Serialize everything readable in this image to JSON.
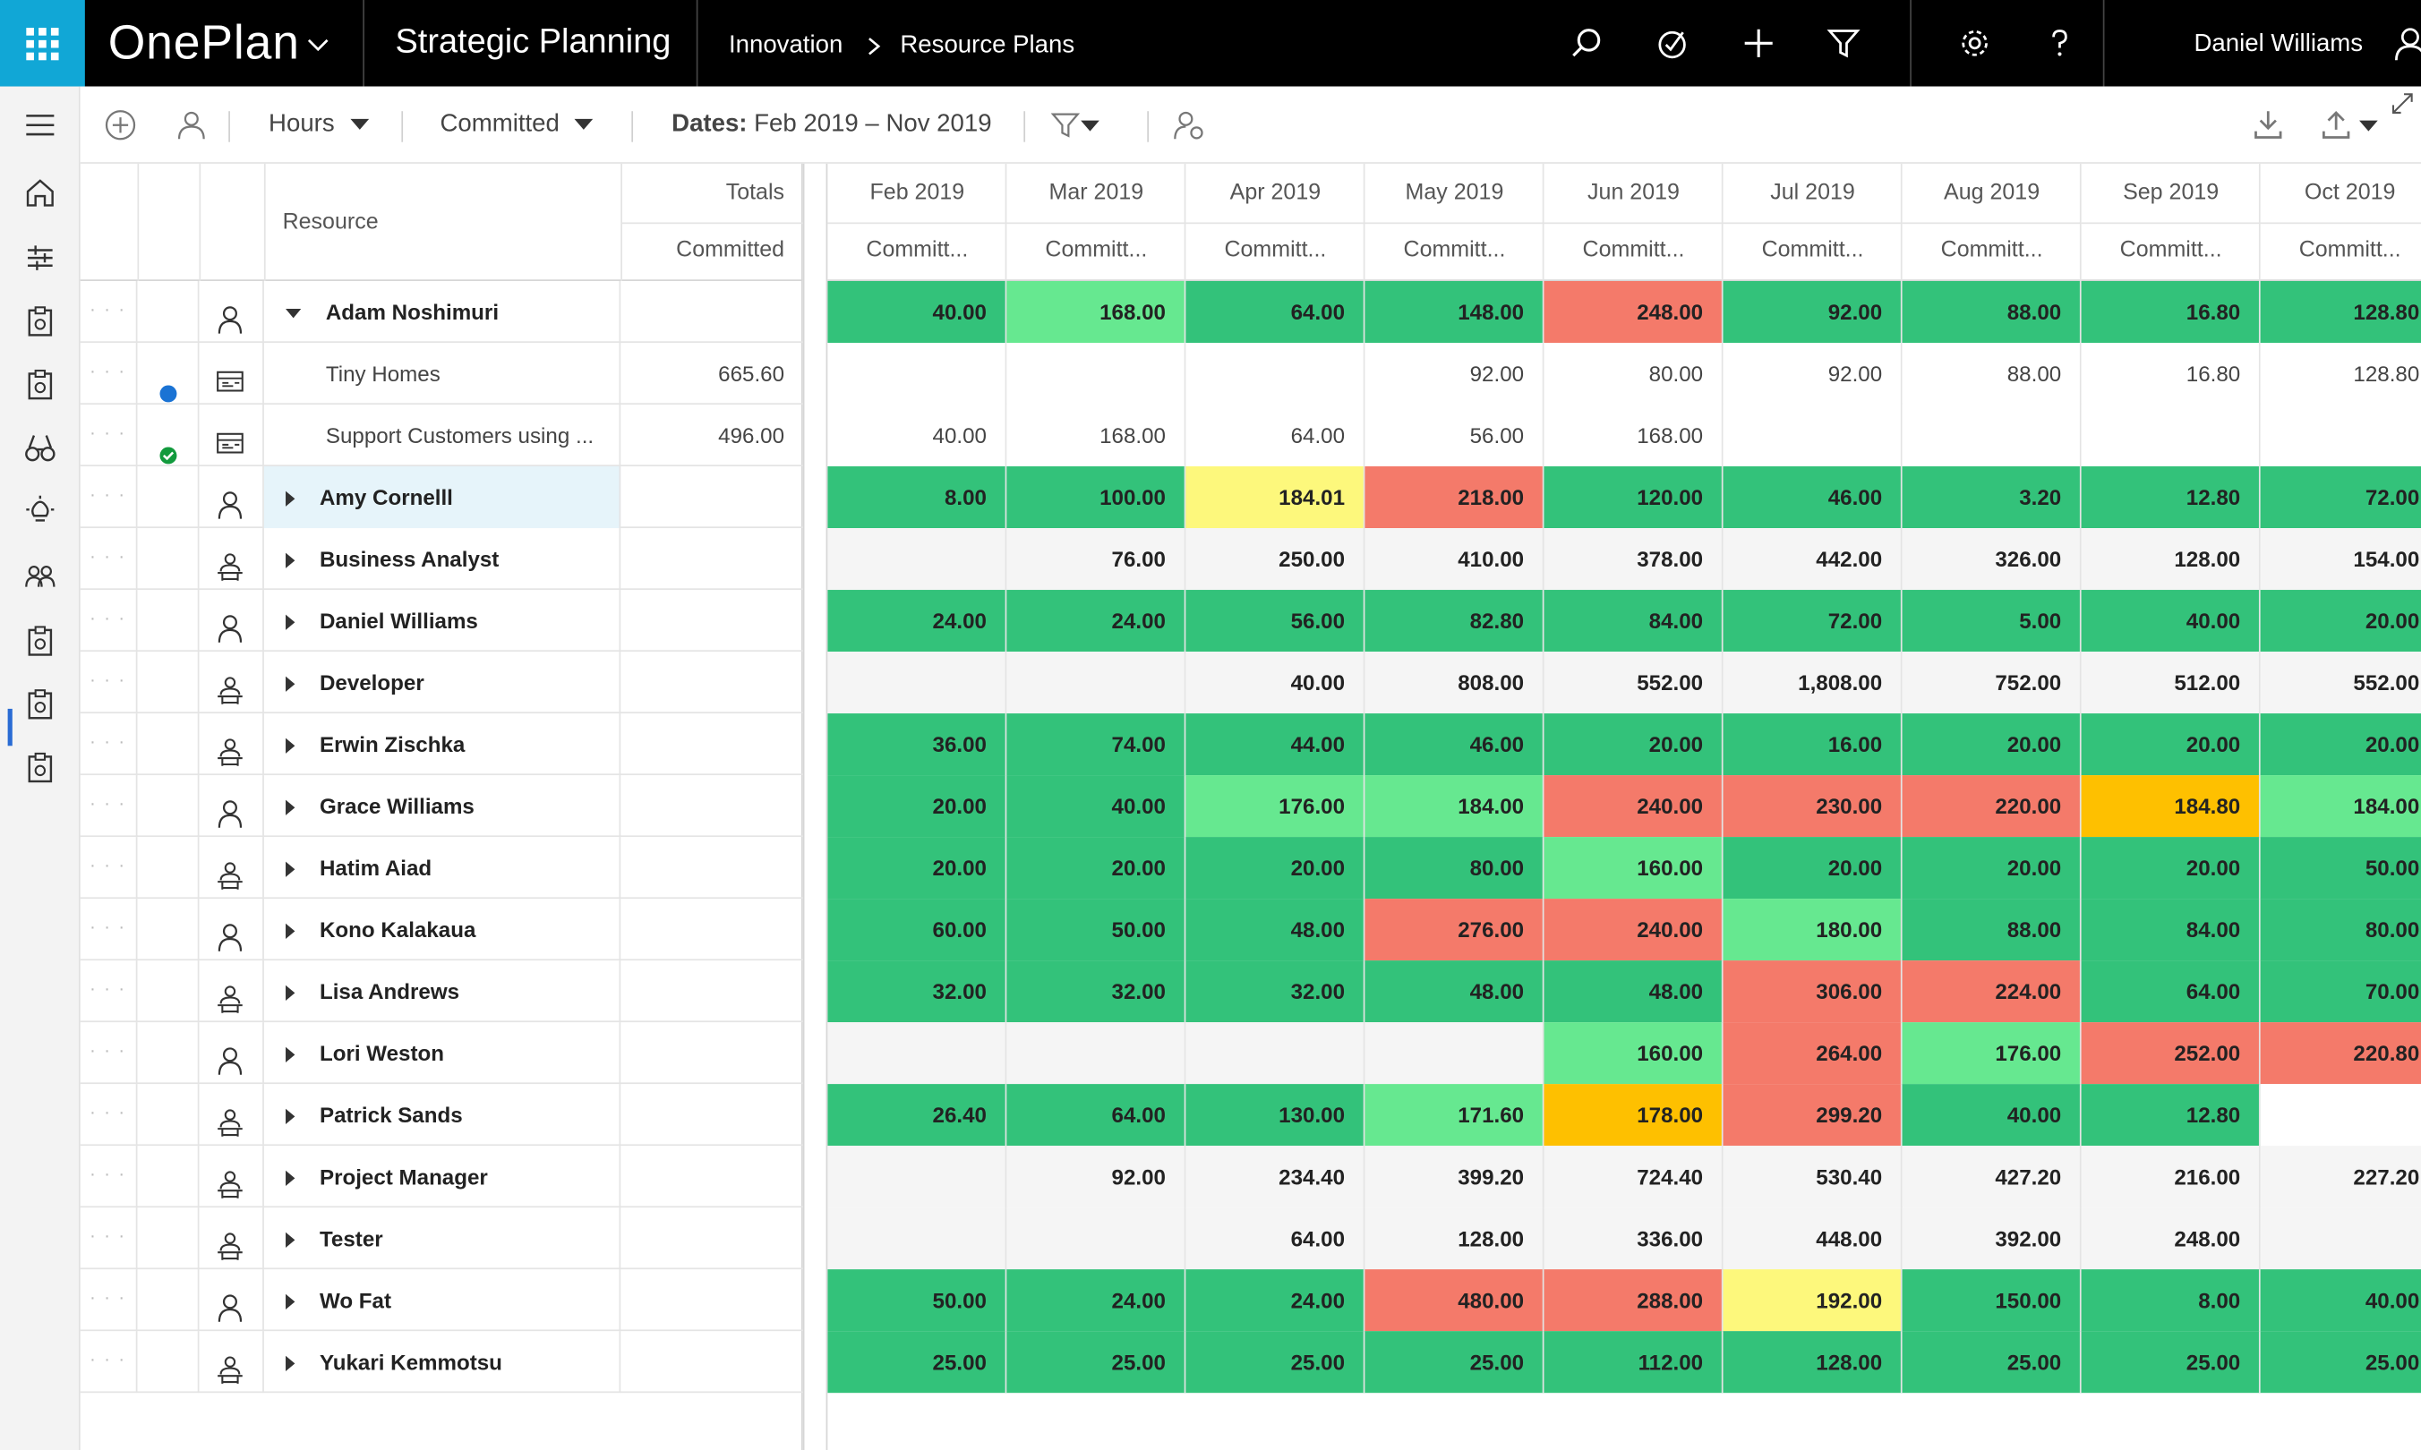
{
  "topbar": {
    "brand": "OnePlan",
    "app_name": "Strategic Planning",
    "breadcrumb": [
      "Innovation",
      "Resource Plans"
    ],
    "user": "Daniel Williams",
    "colors": {
      "bar": "#000000",
      "waffle": "#11a7d6"
    }
  },
  "toolbar": {
    "unit": "Hours",
    "mode": "Committed",
    "dates_label": "Dates:",
    "dates_value": "Feb 2019 – Nov 2019"
  },
  "grid": {
    "resource_header": "Resource",
    "totals_header": "Totals",
    "totals_sub": "Committed",
    "months": [
      "Feb 2019",
      "Mar 2019",
      "Apr 2019",
      "May 2019",
      "Jun 2019",
      "Jul 2019",
      "Aug 2019",
      "Sep 2019",
      "Oct 2019"
    ],
    "month_sub": "Committ...",
    "colors": {
      "g": "#33c27a",
      "l": "#66e890",
      "r": "#f47a6a",
      "y": "#fdf87c",
      "o": "#fec000",
      "w": "#ffffff",
      "n": "#f5f5f5"
    },
    "rows": [
      {
        "name": "Adam Noshimuri",
        "bold": true,
        "expanded": true,
        "icon": "person",
        "total": "",
        "cells": [
          [
            "40.00",
            "g"
          ],
          [
            "168.00",
            "l"
          ],
          [
            "64.00",
            "g"
          ],
          [
            "148.00",
            "g"
          ],
          [
            "248.00",
            "r"
          ],
          [
            "92.00",
            "g"
          ],
          [
            "88.00",
            "g"
          ],
          [
            "16.80",
            "g"
          ],
          [
            "128.80",
            "g"
          ]
        ]
      },
      {
        "name": "Tiny Homes",
        "bold": false,
        "child": true,
        "icon": "project",
        "status": "dot",
        "total": "665.60",
        "cells": [
          [
            "",
            "w"
          ],
          [
            "",
            "w"
          ],
          [
            "",
            "w"
          ],
          [
            "92.00",
            "w"
          ],
          [
            "80.00",
            "w"
          ],
          [
            "92.00",
            "w"
          ],
          [
            "88.00",
            "w"
          ],
          [
            "16.80",
            "w"
          ],
          [
            "128.80",
            "w"
          ]
        ]
      },
      {
        "name": "Support Customers using ...",
        "bold": false,
        "child": true,
        "icon": "project",
        "status": "check",
        "total": "496.00",
        "cells": [
          [
            "40.00",
            "w"
          ],
          [
            "168.00",
            "w"
          ],
          [
            "64.00",
            "w"
          ],
          [
            "56.00",
            "w"
          ],
          [
            "168.00",
            "w"
          ],
          [
            "",
            "w"
          ],
          [
            "",
            "w"
          ],
          [
            "",
            "w"
          ],
          [
            "",
            "w"
          ]
        ]
      },
      {
        "name": "Amy Cornelll",
        "bold": true,
        "icon": "person",
        "selected": true,
        "total": "",
        "cells": [
          [
            "8.00",
            "g"
          ],
          [
            "100.00",
            "g"
          ],
          [
            "184.01",
            "y"
          ],
          [
            "218.00",
            "r"
          ],
          [
            "120.00",
            "g"
          ],
          [
            "46.00",
            "g"
          ],
          [
            "3.20",
            "g"
          ],
          [
            "12.80",
            "g"
          ],
          [
            "72.00",
            "g"
          ]
        ]
      },
      {
        "name": "Business Analyst",
        "bold": true,
        "icon": "role",
        "total": "",
        "cells": [
          [
            "",
            "n"
          ],
          [
            "76.00",
            "n"
          ],
          [
            "250.00",
            "n"
          ],
          [
            "410.00",
            "n"
          ],
          [
            "378.00",
            "n"
          ],
          [
            "442.00",
            "n"
          ],
          [
            "326.00",
            "n"
          ],
          [
            "128.00",
            "n"
          ],
          [
            "154.00",
            "n"
          ]
        ]
      },
      {
        "name": "Daniel Williams",
        "bold": true,
        "icon": "person",
        "total": "",
        "cells": [
          [
            "24.00",
            "g"
          ],
          [
            "24.00",
            "g"
          ],
          [
            "56.00",
            "g"
          ],
          [
            "82.80",
            "g"
          ],
          [
            "84.00",
            "g"
          ],
          [
            "72.00",
            "g"
          ],
          [
            "5.00",
            "g"
          ],
          [
            "40.00",
            "g"
          ],
          [
            "20.00",
            "g"
          ]
        ]
      },
      {
        "name": "Developer",
        "bold": true,
        "icon": "role",
        "total": "",
        "cells": [
          [
            "",
            "n"
          ],
          [
            "",
            "n"
          ],
          [
            "40.00",
            "n"
          ],
          [
            "808.00",
            "n"
          ],
          [
            "552.00",
            "n"
          ],
          [
            "1,808.00",
            "n"
          ],
          [
            "752.00",
            "n"
          ],
          [
            "512.00",
            "n"
          ],
          [
            "552.00",
            "n"
          ]
        ]
      },
      {
        "name": "Erwin Zischka",
        "bold": true,
        "icon": "role",
        "total": "",
        "cells": [
          [
            "36.00",
            "g"
          ],
          [
            "74.00",
            "g"
          ],
          [
            "44.00",
            "g"
          ],
          [
            "46.00",
            "g"
          ],
          [
            "20.00",
            "g"
          ],
          [
            "16.00",
            "g"
          ],
          [
            "20.00",
            "g"
          ],
          [
            "20.00",
            "g"
          ],
          [
            "20.00",
            "g"
          ]
        ]
      },
      {
        "name": "Grace Williams",
        "bold": true,
        "icon": "person",
        "total": "",
        "cells": [
          [
            "20.00",
            "g"
          ],
          [
            "40.00",
            "g"
          ],
          [
            "176.00",
            "l"
          ],
          [
            "184.00",
            "l"
          ],
          [
            "240.00",
            "r"
          ],
          [
            "230.00",
            "r"
          ],
          [
            "220.00",
            "r"
          ],
          [
            "184.80",
            "o"
          ],
          [
            "184.00",
            "l"
          ]
        ]
      },
      {
        "name": "Hatim Aiad",
        "bold": true,
        "icon": "role",
        "total": "",
        "cells": [
          [
            "20.00",
            "g"
          ],
          [
            "20.00",
            "g"
          ],
          [
            "20.00",
            "g"
          ],
          [
            "80.00",
            "g"
          ],
          [
            "160.00",
            "l"
          ],
          [
            "20.00",
            "g"
          ],
          [
            "20.00",
            "g"
          ],
          [
            "20.00",
            "g"
          ],
          [
            "50.00",
            "g"
          ]
        ]
      },
      {
        "name": "Kono Kalakaua",
        "bold": true,
        "icon": "person",
        "total": "",
        "cells": [
          [
            "60.00",
            "g"
          ],
          [
            "50.00",
            "g"
          ],
          [
            "48.00",
            "g"
          ],
          [
            "276.00",
            "r"
          ],
          [
            "240.00",
            "r"
          ],
          [
            "180.00",
            "l"
          ],
          [
            "88.00",
            "g"
          ],
          [
            "84.00",
            "g"
          ],
          [
            "80.00",
            "g"
          ]
        ]
      },
      {
        "name": "Lisa Andrews",
        "bold": true,
        "icon": "role",
        "total": "",
        "cells": [
          [
            "32.00",
            "g"
          ],
          [
            "32.00",
            "g"
          ],
          [
            "32.00",
            "g"
          ],
          [
            "48.00",
            "g"
          ],
          [
            "48.00",
            "g"
          ],
          [
            "306.00",
            "r"
          ],
          [
            "224.00",
            "r"
          ],
          [
            "64.00",
            "g"
          ],
          [
            "70.00",
            "g"
          ]
        ]
      },
      {
        "name": "Lori Weston",
        "bold": true,
        "icon": "person",
        "total": "",
        "cells": [
          [
            "",
            "n"
          ],
          [
            "",
            "n"
          ],
          [
            "",
            "n"
          ],
          [
            "",
            "n"
          ],
          [
            "160.00",
            "l"
          ],
          [
            "264.00",
            "r"
          ],
          [
            "176.00",
            "l"
          ],
          [
            "252.00",
            "r"
          ],
          [
            "220.80",
            "r"
          ]
        ]
      },
      {
        "name": "Patrick Sands",
        "bold": true,
        "icon": "role",
        "total": "",
        "cells": [
          [
            "26.40",
            "g"
          ],
          [
            "64.00",
            "g"
          ],
          [
            "130.00",
            "g"
          ],
          [
            "171.60",
            "l"
          ],
          [
            "178.00",
            "o"
          ],
          [
            "299.20",
            "r"
          ],
          [
            "40.00",
            "g"
          ],
          [
            "12.80",
            "g"
          ],
          [
            "",
            "w"
          ]
        ]
      },
      {
        "name": "Project Manager",
        "bold": true,
        "icon": "role",
        "total": "",
        "cells": [
          [
            "",
            "n"
          ],
          [
            "92.00",
            "n"
          ],
          [
            "234.40",
            "n"
          ],
          [
            "399.20",
            "n"
          ],
          [
            "724.40",
            "n"
          ],
          [
            "530.40",
            "n"
          ],
          [
            "427.20",
            "n"
          ],
          [
            "216.00",
            "n"
          ],
          [
            "227.20",
            "n"
          ]
        ]
      },
      {
        "name": "Tester",
        "bold": true,
        "icon": "role",
        "total": "",
        "cells": [
          [
            "",
            "n"
          ],
          [
            "",
            "n"
          ],
          [
            "64.00",
            "n"
          ],
          [
            "128.00",
            "n"
          ],
          [
            "336.00",
            "n"
          ],
          [
            "448.00",
            "n"
          ],
          [
            "392.00",
            "n"
          ],
          [
            "248.00",
            "n"
          ],
          [
            "",
            "n"
          ]
        ]
      },
      {
        "name": "Wo Fat",
        "bold": true,
        "icon": "person",
        "total": "",
        "cells": [
          [
            "50.00",
            "g"
          ],
          [
            "24.00",
            "g"
          ],
          [
            "24.00",
            "g"
          ],
          [
            "480.00",
            "r"
          ],
          [
            "288.00",
            "r"
          ],
          [
            "192.00",
            "y"
          ],
          [
            "150.00",
            "g"
          ],
          [
            "8.00",
            "g"
          ],
          [
            "40.00",
            "g"
          ]
        ]
      },
      {
        "name": "Yukari Kemmotsu",
        "bold": true,
        "icon": "role",
        "total": "",
        "cells": [
          [
            "25.00",
            "g"
          ],
          [
            "25.00",
            "g"
          ],
          [
            "25.00",
            "g"
          ],
          [
            "25.00",
            "g"
          ],
          [
            "112.00",
            "g"
          ],
          [
            "128.00",
            "g"
          ],
          [
            "25.00",
            "g"
          ],
          [
            "25.00",
            "g"
          ],
          [
            "25.00",
            "g"
          ]
        ]
      }
    ]
  }
}
